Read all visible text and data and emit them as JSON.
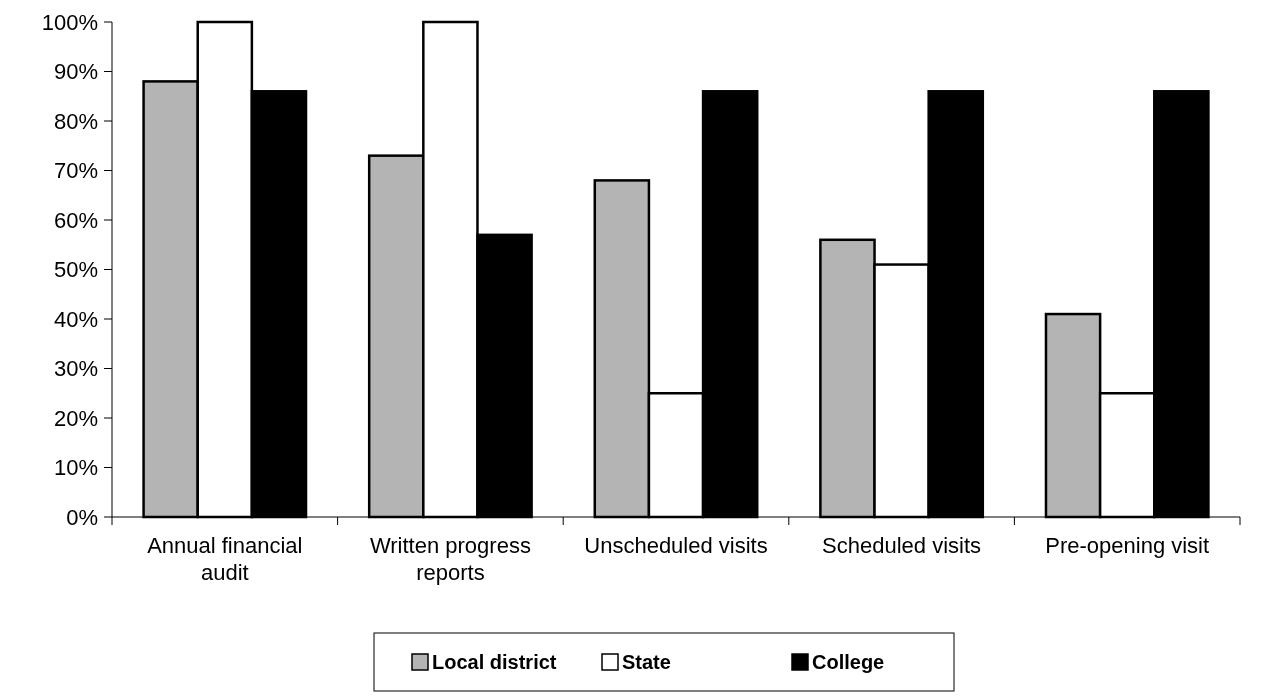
{
  "chart_data": {
    "type": "bar",
    "categories": [
      "Annual financial audit",
      "Written progress reports",
      "Unscheduled visits",
      "Scheduled visits",
      "Pre-opening visit"
    ],
    "series": [
      {
        "name": "Local district",
        "color": "#b4b4b4",
        "values": [
          88,
          73,
          68,
          56,
          41
        ]
      },
      {
        "name": "State",
        "color": "#ffffff",
        "values": [
          100,
          100,
          25,
          51,
          25
        ]
      },
      {
        "name": "College",
        "color": "#000000",
        "values": [
          86,
          57,
          86,
          86,
          86
        ]
      }
    ],
    "ylim": [
      0,
      100
    ],
    "yticks": [
      {
        "value": 0,
        "label": "0%"
      },
      {
        "value": 10,
        "label": "10%"
      },
      {
        "value": 20,
        "label": "20%"
      },
      {
        "value": 30,
        "label": "30%"
      },
      {
        "value": 40,
        "label": "40%"
      },
      {
        "value": 50,
        "label": "50%"
      },
      {
        "value": 60,
        "label": "60%"
      },
      {
        "value": 70,
        "label": "70%"
      },
      {
        "value": 80,
        "label": "80%"
      },
      {
        "value": 90,
        "label": "90%"
      },
      {
        "value": 100,
        "label": "100%"
      }
    ],
    "grid": false,
    "legend": "bottom"
  }
}
